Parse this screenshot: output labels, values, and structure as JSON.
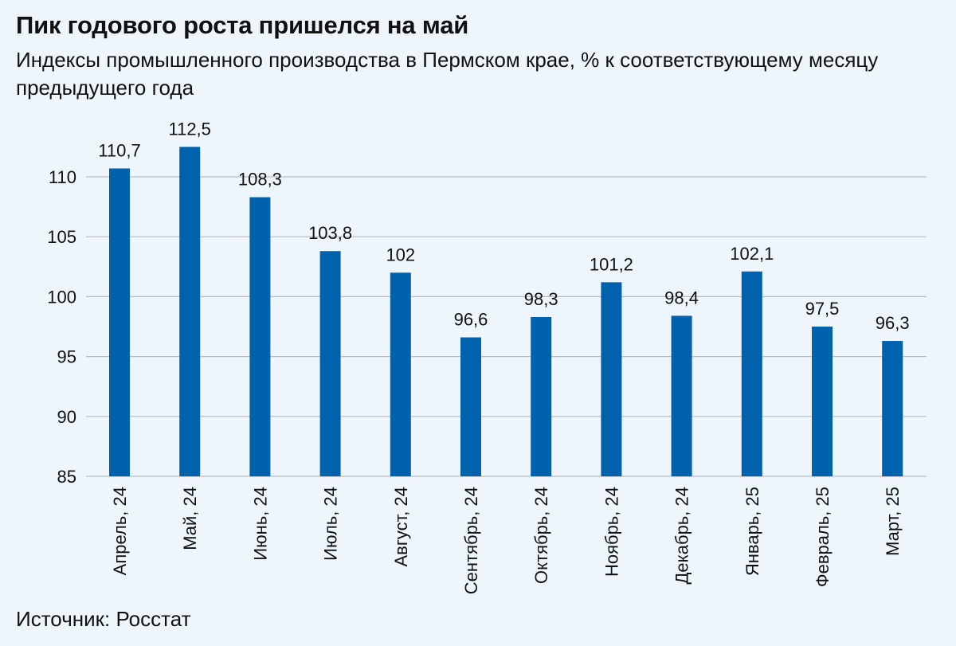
{
  "header": {
    "title": "Пик годового роста пришелся на май",
    "subtitle": "Индексы промышленного производства в Пермском крае, % к соответствующему месяцу предыдущего года"
  },
  "footer": {
    "source": "Источник: Росстат"
  },
  "colors": {
    "bar": "#0061ad",
    "grid": "#b9bcbf",
    "background": "#eef6fc"
  },
  "chart_data": {
    "type": "bar",
    "title": "Пик годового роста пришелся на май",
    "subtitle": "Индексы промышленного производства в Пермском крае, % к соответствующему месяцу предыдущего года",
    "xlabel": "",
    "ylabel": "",
    "categories": [
      "Апрель, 24",
      "Май, 24",
      "Июнь, 24",
      "Июль, 24",
      "Август, 24",
      "Сентябрь, 24",
      "Октябрь, 24",
      "Ноябрь, 24",
      "Декабрь, 24",
      "Январь, 25",
      "Февраль, 25",
      "Март, 25"
    ],
    "values": [
      110.7,
      112.5,
      108.3,
      103.8,
      102,
      96.6,
      98.3,
      101.2,
      98.4,
      102.1,
      97.5,
      96.3
    ],
    "value_labels": [
      "110,7",
      "112,5",
      "108,3",
      "103,8",
      "102",
      "96,6",
      "98,3",
      "101,2",
      "98,4",
      "102,1",
      "97,5",
      "96,3"
    ],
    "yticks": [
      85,
      90,
      95,
      100,
      105,
      110
    ],
    "ylim": [
      85,
      110
    ],
    "grid": true,
    "legend": "none"
  }
}
